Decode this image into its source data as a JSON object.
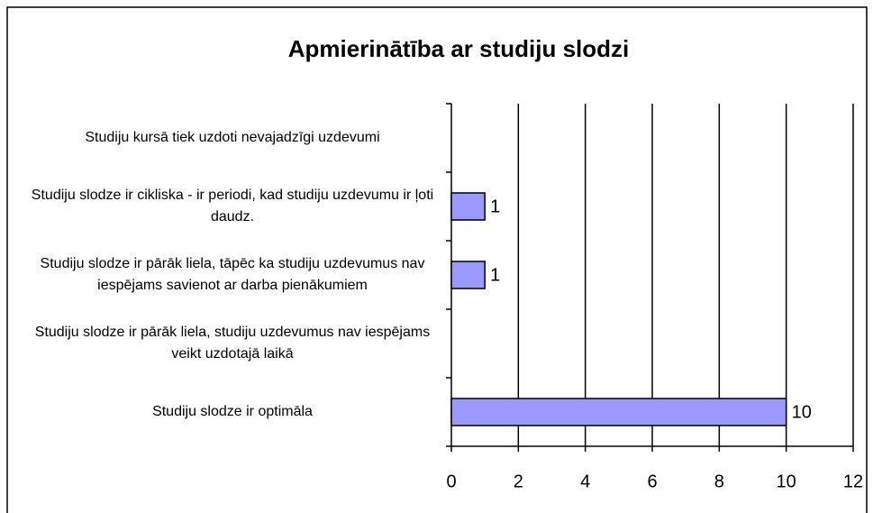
{
  "chart_data": {
    "type": "bar",
    "orientation": "horizontal",
    "title": "Apmierinātība ar studiju slodzi",
    "categories": [
      "Studiju kursā tiek uzdoti nevajadzīgi uzdevumi",
      "Studiju slodze ir cikliska - ir periodi, kad studiju uzdevumu ir ļoti daudz.",
      "Studiju slodze ir pārāk liela,  tāpēc ka  studiju uzdevumus nav iespējams savienot ar darba pienākumiem",
      "Studiju slodze ir  pārāk liela, studiju uzdevumus nav iespējams veikt uzdotajā laikā",
      "Studiju slodze ir optimāla"
    ],
    "values": [
      0,
      1,
      1,
      0,
      10
    ],
    "color": "#9999ff",
    "xlim": [
      0,
      12
    ],
    "xticks": [
      0,
      2,
      4,
      6,
      8,
      10,
      12
    ],
    "grid": true
  }
}
